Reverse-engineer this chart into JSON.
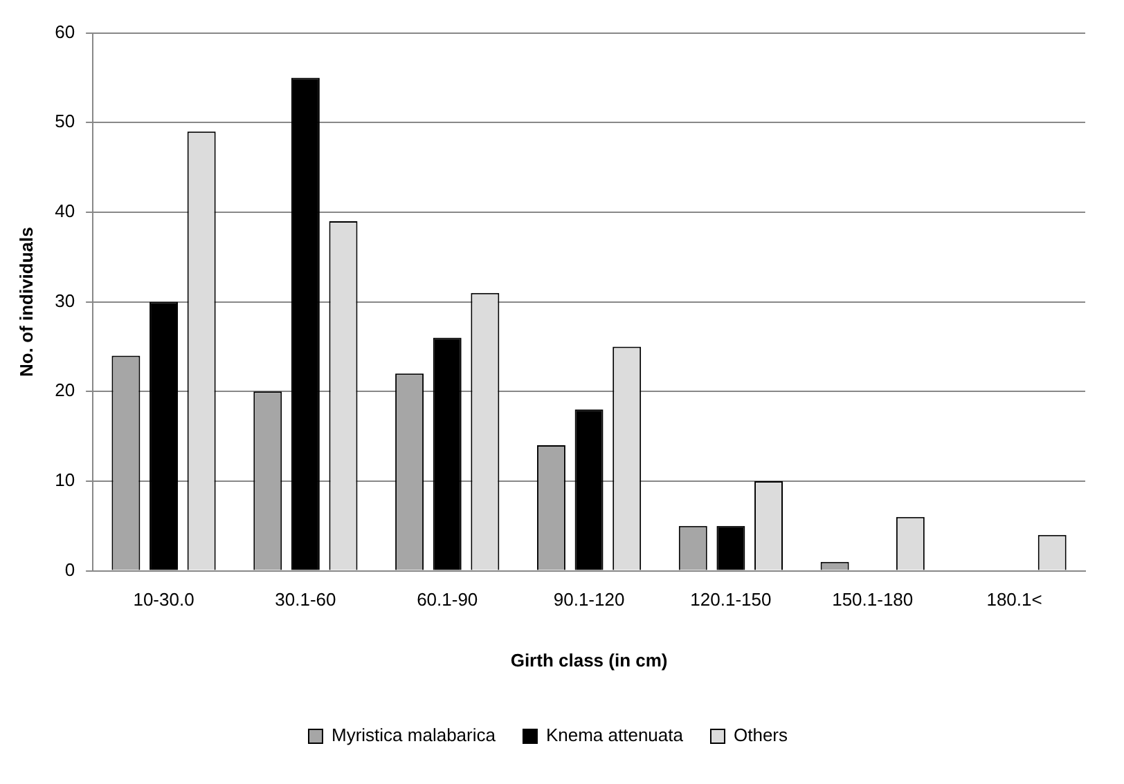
{
  "chart_data": {
    "type": "bar",
    "xlabel": "Girth class (in cm)",
    "ylabel": "No. of individuals",
    "categories": [
      "10-30.0",
      "30.1-60",
      "60.1-90",
      "90.1-120",
      "120.1-150",
      "150.1-180",
      "180.1<"
    ],
    "series": [
      {
        "name": "Myristica malabarica",
        "color": "#a6a6a6",
        "values": [
          24,
          20,
          22,
          14,
          5,
          1,
          0
        ]
      },
      {
        "name": "Knema attenuata",
        "color": "#000000",
        "values": [
          30,
          55,
          26,
          18,
          5,
          0,
          0
        ]
      },
      {
        "name": "Others",
        "color": "#dcdcdc",
        "values": [
          49,
          39,
          31,
          25,
          10,
          6,
          4
        ]
      }
    ],
    "ylim": [
      0,
      60
    ],
    "yticks": [
      0,
      10,
      20,
      30,
      40,
      50,
      60
    ],
    "grid": "y",
    "legend": "bottom"
  }
}
